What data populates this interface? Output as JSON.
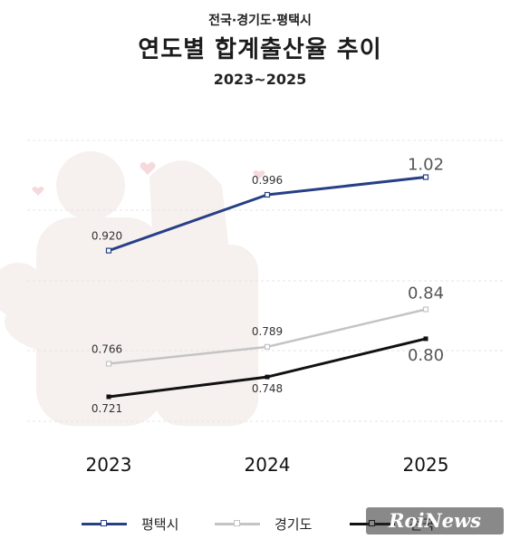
{
  "header": {
    "supertitle": "전국·경기도·평택시",
    "title": "연도별 합계출산율 추이",
    "subtitle": "2023~2025"
  },
  "colors": {
    "pyeongtaek": "#273f86",
    "gyeonggi": "#c4c4c4",
    "national": "#111111",
    "gridline": "#e6e6e6"
  },
  "chart_data": {
    "type": "line",
    "title": "연도별 합계출산율 추이",
    "subtitle": "2023~2025",
    "categories": [
      "2023",
      "2024",
      "2025"
    ],
    "series": [
      {
        "name": "평택시",
        "values": [
          0.92,
          0.996,
          1.02
        ],
        "labels": [
          "0.920",
          "0.996",
          "1.02"
        ],
        "color": "#273f86"
      },
      {
        "name": "경기도",
        "values": [
          0.766,
          0.789,
          0.84
        ],
        "labels": [
          "0.766",
          "0.789",
          "0.84"
        ],
        "color": "#c4c4c4"
      },
      {
        "name": "전국",
        "values": [
          0.721,
          0.748,
          0.8
        ],
        "labels": [
          "0.721",
          "0.748",
          "0.80"
        ],
        "color": "#111111"
      }
    ],
    "legend_position": "bottom",
    "grid": true
  },
  "legend": [
    {
      "label": "평택시",
      "icon": "line-square-marker"
    },
    {
      "label": "경기도",
      "icon": "line-square-marker"
    },
    {
      "label": "전국",
      "icon": "line-square-marker"
    }
  ],
  "watermark": {
    "text": "RoiNews"
  }
}
